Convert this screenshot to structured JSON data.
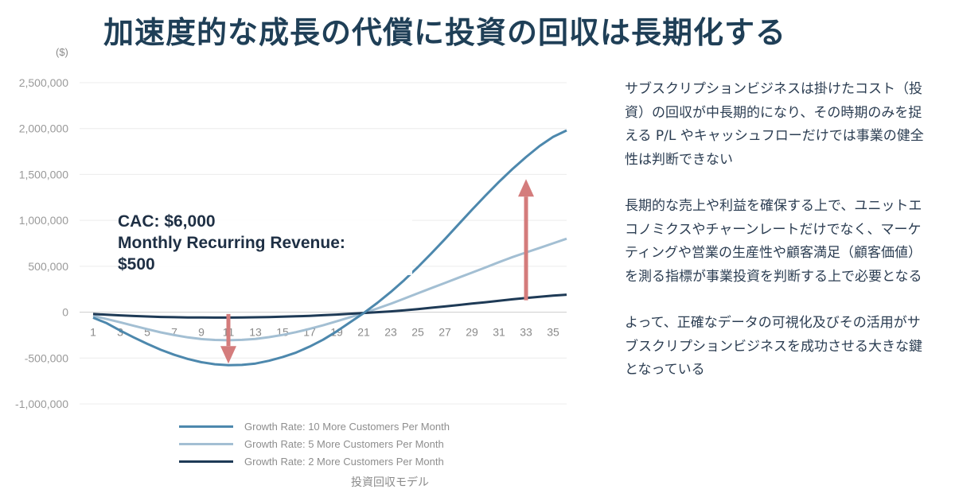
{
  "header": {
    "title": "加速度的な成長の代償に投資の回収は長期化する"
  },
  "chart_data": {
    "type": "line",
    "unit_label": "($)",
    "x": [
      1,
      2,
      3,
      4,
      5,
      6,
      7,
      8,
      9,
      10,
      11,
      12,
      13,
      14,
      15,
      16,
      17,
      18,
      19,
      20,
      21,
      22,
      23,
      24,
      25,
      26,
      27,
      28,
      29,
      30,
      31,
      32,
      33,
      34,
      35,
      36
    ],
    "x_tick_labels": [
      "1",
      "3",
      "5",
      "7",
      "9",
      "11",
      "13",
      "15",
      "17",
      "19",
      "21",
      "23",
      "25",
      "27",
      "29",
      "31",
      "33",
      "35"
    ],
    "x_tick_values": [
      1,
      3,
      5,
      7,
      9,
      11,
      13,
      15,
      17,
      19,
      21,
      23,
      25,
      27,
      29,
      31,
      33,
      35
    ],
    "y_ticks": [
      2500000,
      2000000,
      1500000,
      1000000,
      500000,
      0,
      -500000,
      -1000000
    ],
    "y_tick_labels": [
      "2,500,000",
      "2,000,000",
      "1,500,000",
      "1,000,000",
      "500,000",
      "0",
      "-500,000",
      "-1,000,000"
    ],
    "ylim": [
      -1000000,
      2500000
    ],
    "xlim": [
      0,
      36
    ],
    "series": [
      {
        "name": "Growth Rate: 10 More Customers Per Month",
        "color": "#4d88ad",
        "values": [
          -60000,
          -120000,
          -200000,
          -275000,
          -345000,
          -410000,
          -465000,
          -510000,
          -545000,
          -568000,
          -578000,
          -575000,
          -560000,
          -530000,
          -490000,
          -440000,
          -375000,
          -300000,
          -210000,
          -110000,
          -10000,
          100000,
          220000,
          350000,
          490000,
          640000,
          795000,
          955000,
          1115000,
          1270000,
          1420000,
          1560000,
          1690000,
          1810000,
          1910000,
          1980000
        ]
      },
      {
        "name": "Growth Rate: 5 More Customers Per Month",
        "color": "#a3bfd3",
        "values": [
          -40000,
          -75000,
          -110000,
          -148000,
          -185000,
          -220000,
          -250000,
          -275000,
          -293000,
          -303000,
          -306000,
          -302000,
          -291000,
          -272000,
          -248000,
          -218000,
          -182000,
          -143000,
          -100000,
          -55000,
          -10000,
          40000,
          92000,
          148000,
          205000,
          262000,
          318000,
          375000,
          430000,
          487000,
          545000,
          600000,
          650000,
          700000,
          750000,
          800000
        ]
      },
      {
        "name": "Growth Rate: 2 More Customers Per Month",
        "color": "#1e3a56",
        "values": [
          -20000,
          -28000,
          -35000,
          -42000,
          -47000,
          -52000,
          -55000,
          -57000,
          -58000,
          -59000,
          -59000,
          -58000,
          -56000,
          -53000,
          -50000,
          -45000,
          -40000,
          -33000,
          -26000,
          -18000,
          -9000,
          0,
          8000,
          20000,
          33000,
          48000,
          62000,
          78000,
          93000,
          108000,
          124000,
          140000,
          155000,
          168000,
          180000,
          190000
        ]
      }
    ],
    "arrows": [
      {
        "x": 11,
        "from": -20000,
        "to": -560000,
        "direction": "down",
        "color": "#d47c7c"
      },
      {
        "x": 33,
        "from": 130000,
        "to": 1450000,
        "direction": "up",
        "color": "#d47c7c"
      }
    ],
    "annotation": {
      "line1": "CAC: $6,000",
      "line2": "Monthly Recurring Revenue:",
      "line3": "$500"
    },
    "caption": "投資回収モデル",
    "grid": true,
    "legend_position": "bottom"
  },
  "side_text": {
    "paragraphs": [
      "サブスクリプションビジネスは掛けたコスト（投資）の回収が中長期的になり、その時期のみを捉える P/L やキャッシュフローだけでは事業の健全性は判断できない",
      "長期的な売上や利益を確保する上で、ユニットエコノミクスやチャーンレートだけでなく、マーケティングや営業の生産性や顧客満足（顧客価値）を測る指標が事業投資を判断する上で必要となる",
      "よって、正確なデータの可視化及びその活用がサブスクリプションビジネスを成功させる大きな鍵となっている"
    ]
  }
}
